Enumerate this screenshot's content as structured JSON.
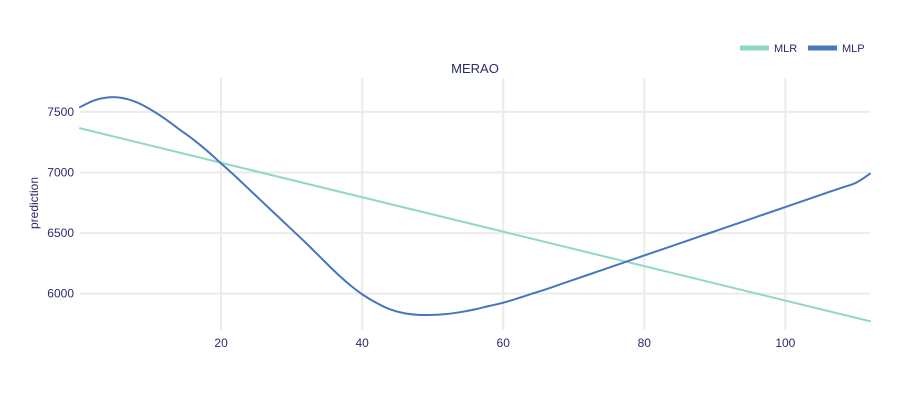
{
  "chart_data": {
    "type": "line",
    "title": "MERAO",
    "xlabel": "",
    "ylabel": "prediction",
    "xlim": [
      0,
      112
    ],
    "ylim": [
      5700,
      7780
    ],
    "xticks": [
      20,
      40,
      60,
      80,
      100
    ],
    "yticks": [
      6000,
      6500,
      7000,
      7500
    ],
    "grid": true,
    "legend_position": "top-right",
    "series": [
      {
        "name": "MLR",
        "color": "#8fd9c4",
        "x": [
          0,
          112
        ],
        "y": [
          7365,
          5772
        ]
      },
      {
        "name": "MLP",
        "color": "#4677bd",
        "x": [
          0,
          2,
          4,
          6,
          8,
          10,
          12,
          14,
          16,
          18,
          20,
          22,
          24,
          26,
          28,
          30,
          32,
          34,
          36,
          38,
          40,
          42,
          44,
          46,
          48,
          50,
          52,
          54,
          56,
          58,
          60,
          62,
          64,
          66,
          68,
          70,
          72,
          74,
          76,
          78,
          80,
          82,
          84,
          86,
          88,
          90,
          92,
          94,
          96,
          98,
          100,
          102,
          104,
          106,
          108,
          110,
          112
        ],
        "y": [
          7540,
          7595,
          7620,
          7615,
          7580,
          7520,
          7445,
          7360,
          7275,
          7180,
          7075,
          6970,
          6860,
          6750,
          6640,
          6530,
          6420,
          6305,
          6190,
          6085,
          5995,
          5925,
          5870,
          5838,
          5825,
          5825,
          5832,
          5848,
          5870,
          5898,
          5925,
          5960,
          5998,
          6035,
          6075,
          6115,
          6155,
          6195,
          6235,
          6275,
          6315,
          6355,
          6395,
          6435,
          6475,
          6515,
          6555,
          6595,
          6635,
          6675,
          6715,
          6755,
          6795,
          6835,
          6875,
          6915,
          6990
        ]
      }
    ]
  }
}
